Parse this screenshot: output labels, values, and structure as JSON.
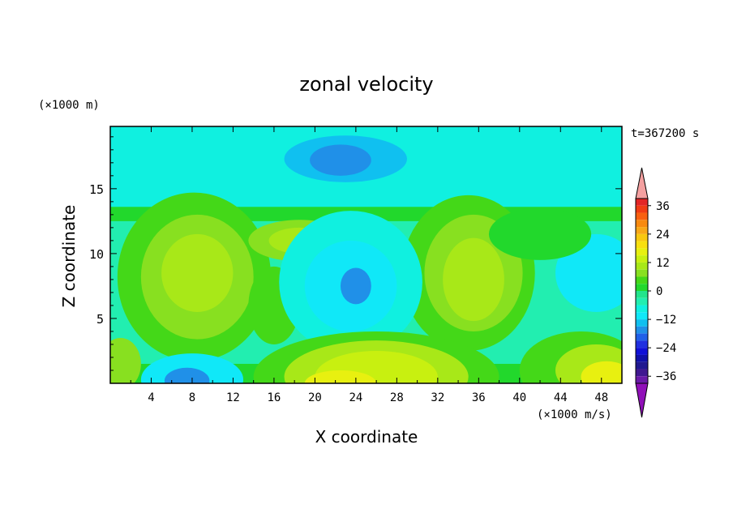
{
  "chart_data": {
    "type": "heatmap",
    "title": "zonal velocity",
    "xlabel": "X coordinate",
    "ylabel": "Z coordinate",
    "x_unit": "(×1000 m/s)",
    "y_unit": "(×1000 m)",
    "time_label": "t=367200 s",
    "xlim": [
      0,
      50
    ],
    "ylim": [
      0,
      19.8
    ],
    "x_ticks": [
      4,
      8,
      12,
      16,
      20,
      24,
      28,
      32,
      36,
      40,
      44,
      48
    ],
    "y_ticks": [
      5,
      10,
      15
    ],
    "colorbar": {
      "ticks": [
        36,
        24,
        12,
        0,
        -12,
        -24,
        -36
      ],
      "levels": [
        {
          "min": 39,
          "max": 48,
          "color": "#f4a0a0"
        },
        {
          "min": 36,
          "max": 39,
          "color": "#e32626"
        },
        {
          "min": 33,
          "max": 36,
          "color": "#f03c14"
        },
        {
          "min": 30,
          "max": 33,
          "color": "#f86010"
        },
        {
          "min": 27,
          "max": 30,
          "color": "#f88a10"
        },
        {
          "min": 24,
          "max": 27,
          "color": "#f8a818"
        },
        {
          "min": 21,
          "max": 24,
          "color": "#f8c810"
        },
        {
          "min": 18,
          "max": 21,
          "color": "#f8e010"
        },
        {
          "min": 15,
          "max": 18,
          "color": "#e8f010"
        },
        {
          "min": 12,
          "max": 15,
          "color": "#c8f010"
        },
        {
          "min": 9,
          "max": 12,
          "color": "#a8e818"
        },
        {
          "min": 6,
          "max": 9,
          "color": "#88e020"
        },
        {
          "min": 3,
          "max": 6,
          "color": "#44d818"
        },
        {
          "min": 0,
          "max": 3,
          "color": "#22d82c"
        },
        {
          "min": -3,
          "max": 0,
          "color": "#22e48c"
        },
        {
          "min": -6,
          "max": -3,
          "color": "#22eeb0"
        },
        {
          "min": -9,
          "max": -6,
          "color": "#10f0e0"
        },
        {
          "min": -12,
          "max": -9,
          "color": "#10e8f8"
        },
        {
          "min": -15,
          "max": -12,
          "color": "#10c0f0"
        },
        {
          "min": -18,
          "max": -15,
          "color": "#2090e8"
        },
        {
          "min": -21,
          "max": -18,
          "color": "#2060e8"
        },
        {
          "min": -24,
          "max": -21,
          "color": "#2030e0"
        },
        {
          "min": -27,
          "max": -24,
          "color": "#1010d8"
        },
        {
          "min": -30,
          "max": -27,
          "color": "#1010a8"
        },
        {
          "min": -33,
          "max": -30,
          "color": "#201890"
        },
        {
          "min": -36,
          "max": -33,
          "color": "#401890"
        },
        {
          "min": -39,
          "max": -36,
          "color": "#6a1aa8"
        },
        {
          "min": -48,
          "max": -39,
          "color": "#9010b8"
        }
      ]
    },
    "features": [
      {
        "kind": "background",
        "value": -5
      },
      {
        "kind": "band",
        "z": [
          13.5,
          19.8
        ],
        "value": -9
      },
      {
        "kind": "band",
        "z": [
          12.5,
          13.6
        ],
        "value": 1.5
      },
      {
        "kind": "band",
        "z": [
          0,
          1.5
        ],
        "value": 1.5
      },
      {
        "kind": "blob",
        "x": 8.2,
        "z": 8.2,
        "rx": 7.5,
        "rz": 6.5,
        "value": 4
      },
      {
        "kind": "blob",
        "x": 8.5,
        "z": 8.2,
        "rx": 5.5,
        "rz": 4.8,
        "value": 8
      },
      {
        "kind": "blob",
        "x": 8.5,
        "z": 8.5,
        "rx": 3.5,
        "rz": 3.0,
        "value": 11
      },
      {
        "kind": "blob",
        "x": 16.0,
        "z": 6.0,
        "rx": 2.5,
        "rz": 3.0,
        "value": 5
      },
      {
        "kind": "blob",
        "x": 18.5,
        "z": 11.0,
        "rx": 5.0,
        "rz": 1.6,
        "value": 6
      },
      {
        "kind": "blob",
        "x": 18.5,
        "z": 11.0,
        "rx": 3.0,
        "rz": 1.0,
        "value": 10
      },
      {
        "kind": "blob",
        "x": 35.0,
        "z": 8.5,
        "rx": 6.5,
        "rz": 6.0,
        "value": 4
      },
      {
        "kind": "blob",
        "x": 35.5,
        "z": 8.5,
        "rx": 4.8,
        "rz": 4.5,
        "value": 8
      },
      {
        "kind": "blob",
        "x": 35.5,
        "z": 8.0,
        "rx": 3.0,
        "rz": 3.2,
        "value": 11
      },
      {
        "kind": "blob",
        "x": 23.5,
        "z": 7.8,
        "rx": 7.0,
        "rz": 5.5,
        "value": -8
      },
      {
        "kind": "blob",
        "x": 23.5,
        "z": 7.5,
        "rx": 4.5,
        "rz": 3.5,
        "value": -11
      },
      {
        "kind": "blob",
        "x": 24.0,
        "z": 7.5,
        "rx": 1.5,
        "rz": 1.4,
        "value": -16
      },
      {
        "kind": "blob",
        "x": 47.5,
        "z": 8.5,
        "rx": 4.0,
        "rz": 3.0,
        "value": -10
      },
      {
        "kind": "blob",
        "x": 23.0,
        "z": 17.3,
        "rx": 6.0,
        "rz": 1.8,
        "value": -13
      },
      {
        "kind": "blob",
        "x": 22.5,
        "z": 17.2,
        "rx": 3.0,
        "rz": 1.2,
        "value": -16
      },
      {
        "kind": "blob",
        "x": 26.0,
        "z": 0.5,
        "rx": 12.0,
        "rz": 3.5,
        "value": 4
      },
      {
        "kind": "blob",
        "x": 26.0,
        "z": 0.5,
        "rx": 9.0,
        "rz": 2.8,
        "value": 9
      },
      {
        "kind": "blob",
        "x": 26.0,
        "z": 0.5,
        "rx": 6.0,
        "rz": 2.0,
        "value": 13
      },
      {
        "kind": "blob",
        "x": 22.5,
        "z": 0.0,
        "rx": 3.5,
        "rz": 1.0,
        "value": 17
      },
      {
        "kind": "blob",
        "x": 8.0,
        "z": 0.3,
        "rx": 5.0,
        "rz": 2.0,
        "value": -10
      },
      {
        "kind": "blob",
        "x": 7.5,
        "z": 0.2,
        "rx": 2.2,
        "rz": 1.0,
        "value": -16
      },
      {
        "kind": "blob",
        "x": 46.0,
        "z": 1.0,
        "rx": 6.0,
        "rz": 3.0,
        "value": 5
      },
      {
        "kind": "blob",
        "x": 47.5,
        "z": 1.0,
        "rx": 4.0,
        "rz": 2.0,
        "value": 11
      },
      {
        "kind": "blob",
        "x": 48.5,
        "z": 0.5,
        "rx": 2.5,
        "rz": 1.2,
        "value": 15
      },
      {
        "kind": "blob",
        "x": 1.0,
        "z": 1.5,
        "rx": 2.0,
        "rz": 2.0,
        "value": 6
      },
      {
        "kind": "blob",
        "x": 42.0,
        "z": 11.5,
        "rx": 5.0,
        "rz": 2.0,
        "value": 1
      }
    ]
  }
}
